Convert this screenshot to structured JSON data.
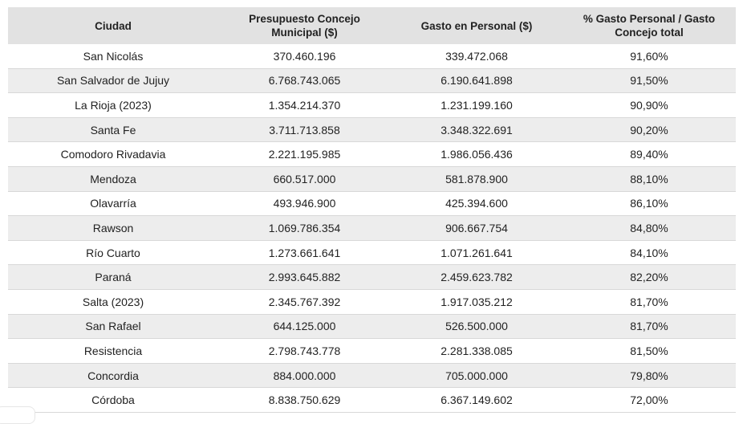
{
  "table": {
    "headers": [
      "Ciudad",
      "Presupuesto Concejo Municipal ($)",
      "Gasto en Personal ($)",
      "% Gasto Personal / Gasto Concejo total"
    ],
    "rows": [
      [
        "San Nicolás",
        "370.460.196",
        "339.472.068",
        "91,60%"
      ],
      [
        "San Salvador de Jujuy",
        "6.768.743.065",
        "6.190.641.898",
        "91,50%"
      ],
      [
        "La Rioja (2023)",
        "1.354.214.370",
        "1.231.199.160",
        "90,90%"
      ],
      [
        "Santa Fe",
        "3.711.713.858",
        "3.348.322.691",
        "90,20%"
      ],
      [
        "Comodoro Rivadavia",
        "2.221.195.985",
        "1.986.056.436",
        "89,40%"
      ],
      [
        "Mendoza",
        "660.517.000",
        "581.878.900",
        "88,10%"
      ],
      [
        "Olavarría",
        "493.946.900",
        "425.394.600",
        "86,10%"
      ],
      [
        "Rawson",
        "1.069.786.354",
        "906.667.754",
        "84,80%"
      ],
      [
        "Río Cuarto",
        "1.273.661.641",
        "1.071.261.641",
        "84,10%"
      ],
      [
        "Paraná",
        "2.993.645.882",
        "2.459.623.782",
        "82,20%"
      ],
      [
        "Salta (2023)",
        "2.345.767.392",
        "1.917.035.212",
        "81,70%"
      ],
      [
        "San Rafael",
        "644.125.000",
        "526.500.000",
        "81,70%"
      ],
      [
        "Resistencia",
        "2.798.743.778",
        "2.281.338.085",
        "81,50%"
      ],
      [
        "Concordia",
        "884.000.000",
        "705.000.000",
        "79,80%"
      ],
      [
        "Córdoba",
        "8.838.750.629",
        "6.367.149.602",
        "72,00%"
      ]
    ]
  }
}
